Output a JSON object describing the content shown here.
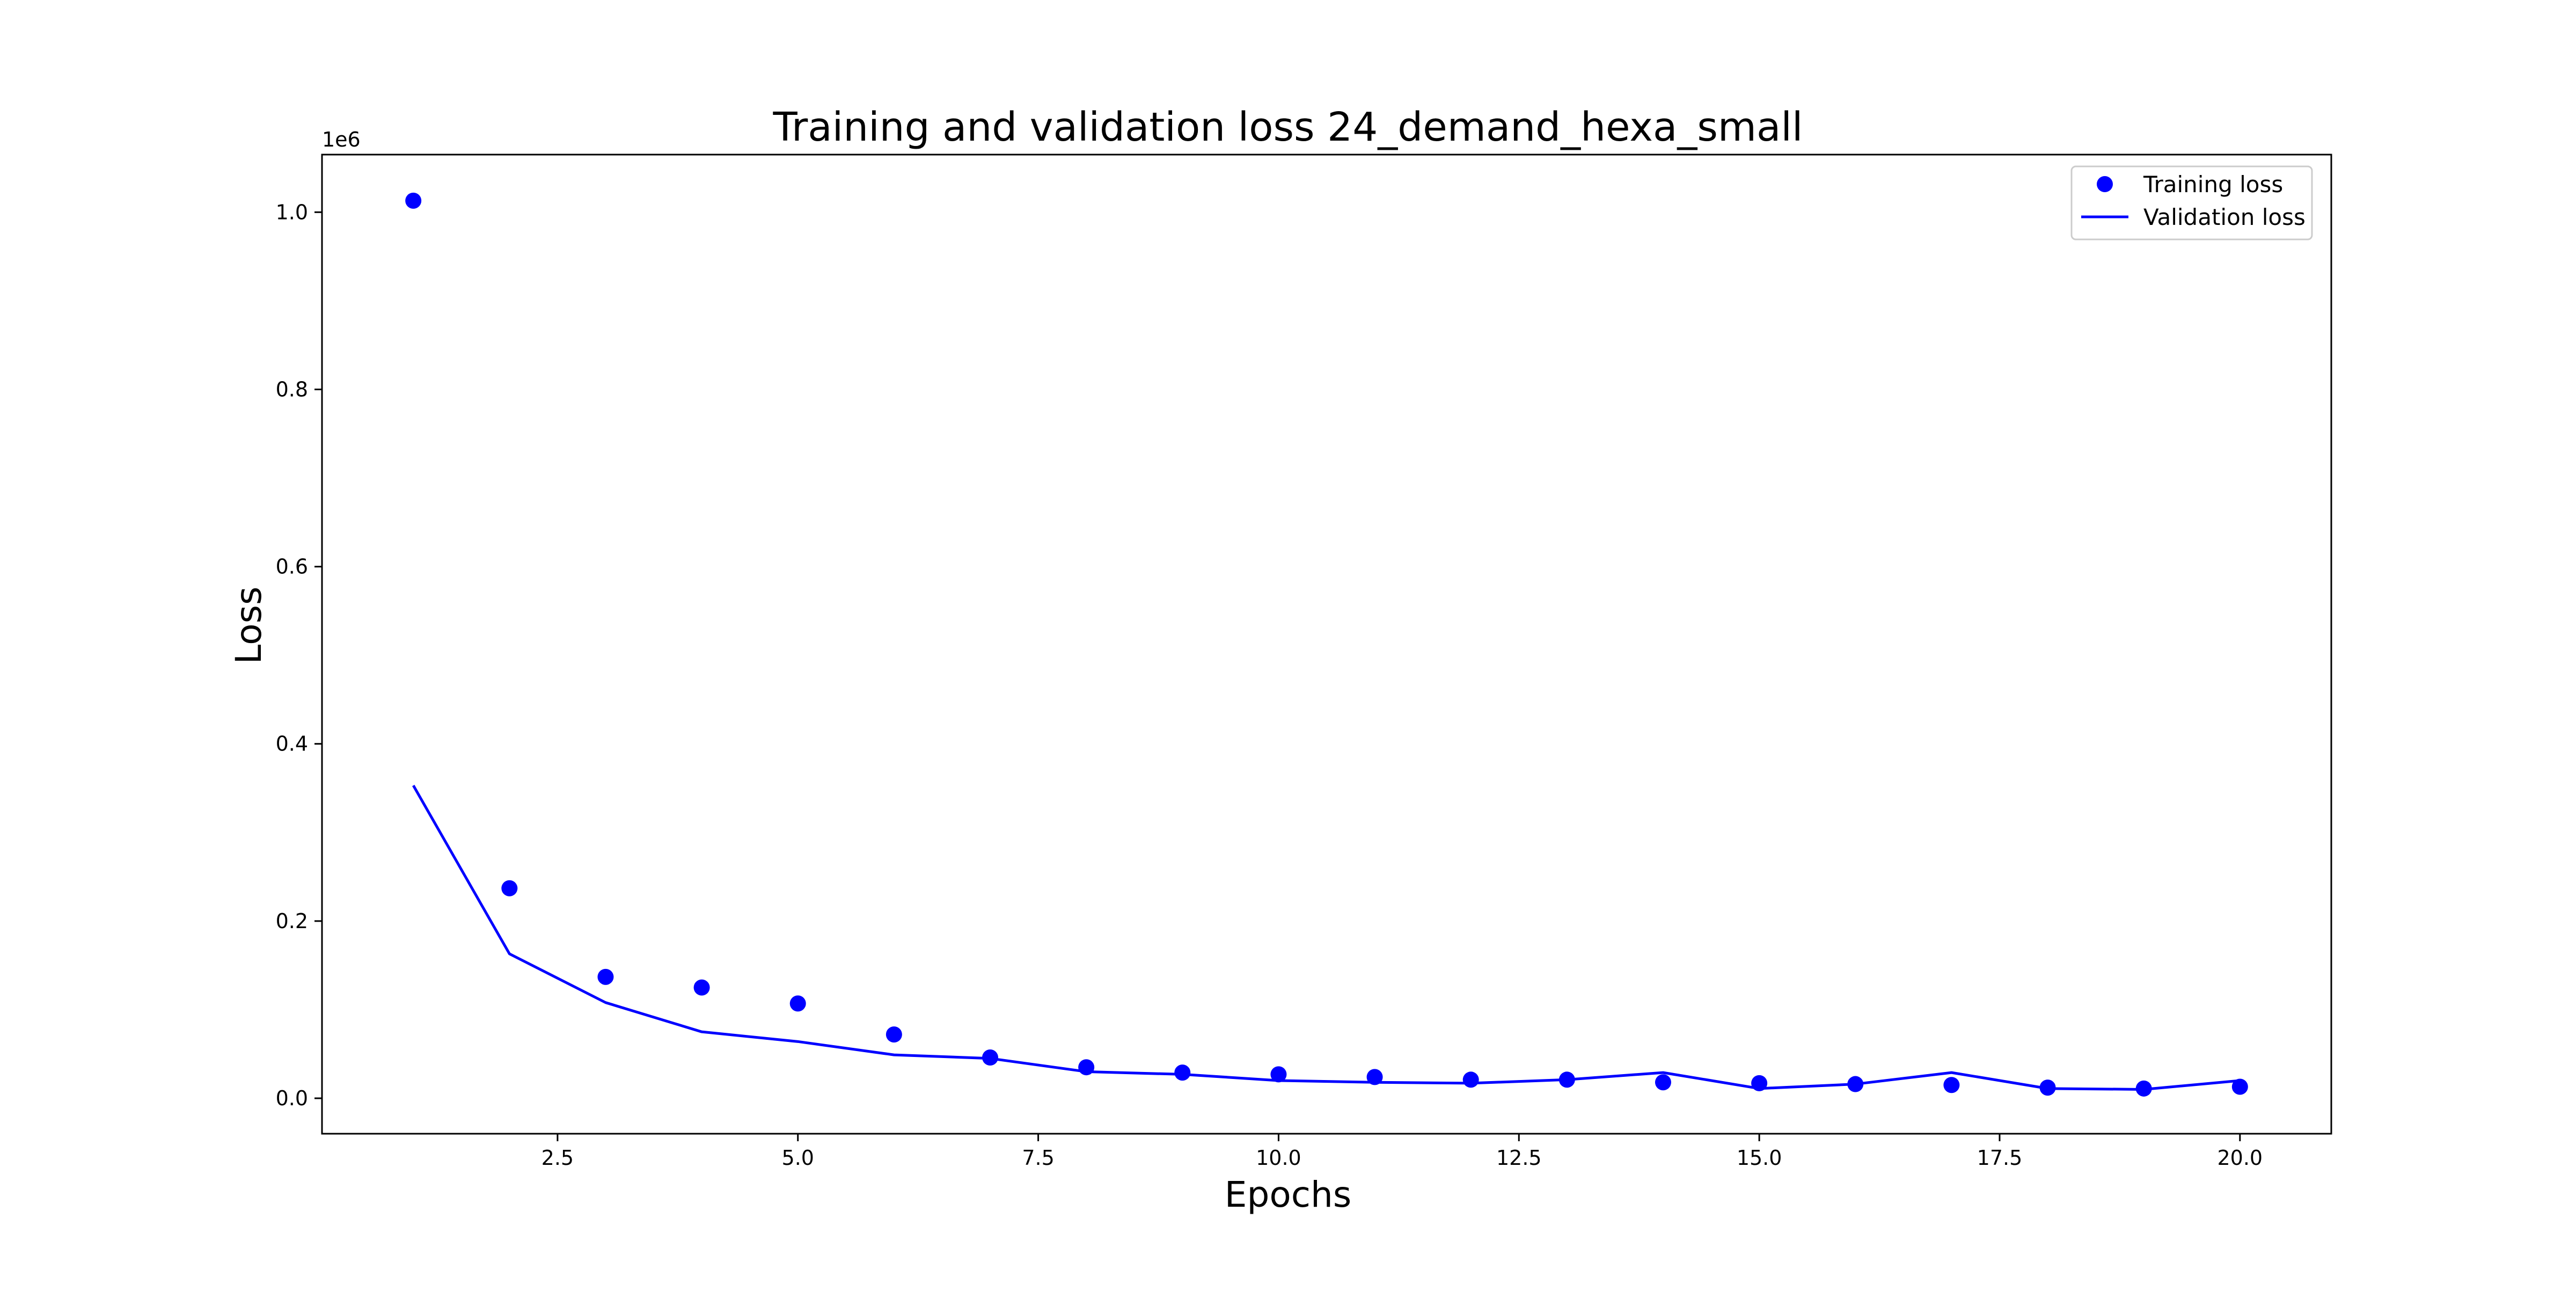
{
  "chart_data": {
    "type": "scatter",
    "title": "Training and validation loss 24_demand_hexa_small",
    "xlabel": "Epochs",
    "ylabel": "Loss",
    "y_offset_label": "1e6",
    "xlim": [
      0.05,
      20.95
    ],
    "ylim": [
      -0.04,
      1.065
    ],
    "x_ticks": [
      2.5,
      5.0,
      7.5,
      10.0,
      12.5,
      15.0,
      17.5,
      20.0
    ],
    "x_tick_labels": [
      "2.5",
      "5.0",
      "7.5",
      "10.0",
      "12.5",
      "15.0",
      "17.5",
      "20.0"
    ],
    "y_ticks": [
      0.0,
      0.2,
      0.4,
      0.6,
      0.8,
      1.0
    ],
    "y_tick_labels": [
      "0.0",
      "0.2",
      "0.4",
      "0.6",
      "0.8",
      "1.0"
    ],
    "x": [
      1,
      2,
      3,
      4,
      5,
      6,
      7,
      8,
      9,
      10,
      11,
      12,
      13,
      14,
      15,
      16,
      17,
      18,
      19,
      20
    ],
    "series": [
      {
        "name": "Training loss",
        "style": "markers",
        "color": "#0000ff",
        "values": [
          1.013,
          0.237,
          0.137,
          0.125,
          0.107,
          0.072,
          0.046,
          0.035,
          0.029,
          0.027,
          0.024,
          0.021,
          0.021,
          0.018,
          0.017,
          0.016,
          0.015,
          0.012,
          0.011,
          0.013
        ]
      },
      {
        "name": "Validation loss",
        "style": "line",
        "color": "#0000ff",
        "values": [
          0.353,
          0.163,
          0.108,
          0.075,
          0.064,
          0.049,
          0.045,
          0.03,
          0.027,
          0.02,
          0.018,
          0.017,
          0.021,
          0.029,
          0.011,
          0.016,
          0.029,
          0.011,
          0.01,
          0.02
        ]
      }
    ],
    "grid": false,
    "legend_position": "top-right"
  }
}
